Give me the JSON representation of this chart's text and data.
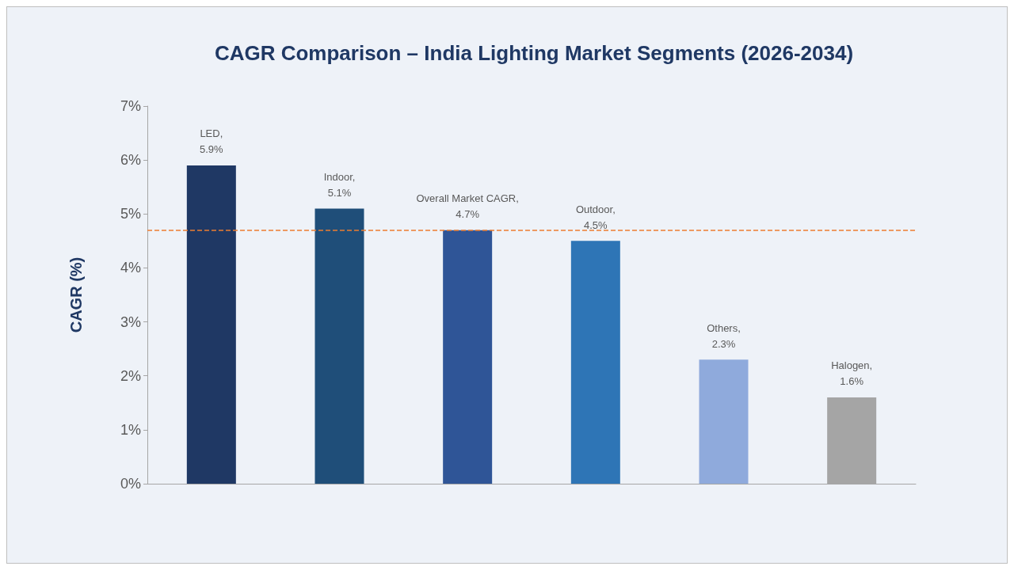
{
  "chart_data": {
    "type": "bar",
    "title": "CAGR Comparison – India Lighting Market Segments (2026-2034)",
    "ylabel": "CAGR (%)",
    "categories": [
      null,
      null,
      null,
      null,
      null,
      null
    ],
    "values": [
      5.9,
      5.1,
      4.7,
      4.5,
      2.3,
      1.6
    ],
    "colors": [
      "#1f3864",
      "#1f4e79",
      "#2f5597",
      "#2e75b6",
      "#8faadc",
      "#a5a5a5"
    ],
    "value_labels": [
      "LED,\n5.9%",
      "Indoor,\n5.1%",
      "Overall Market CAGR,\n4.7%",
      "Outdoor,\n4.5%",
      "Others,\n2.3%",
      "Halogen,\n1.6%"
    ],
    "ylim": [
      0,
      7
    ],
    "yticks": [
      {
        "value": 0,
        "label": "0%"
      },
      {
        "value": 1,
        "label": "1%"
      },
      {
        "value": 2,
        "label": "2%"
      },
      {
        "value": 3,
        "label": "3%"
      },
      {
        "value": 4,
        "label": "4%"
      },
      {
        "value": 5,
        "label": "5%"
      },
      {
        "value": 6,
        "label": "6%"
      },
      {
        "value": 7,
        "label": "7%"
      }
    ],
    "ref_lines": [
      {
        "axis": "y",
        "value": 4.7,
        "color": "#ed7d31",
        "line_style": "dashed"
      }
    ],
    "grid": false
  }
}
